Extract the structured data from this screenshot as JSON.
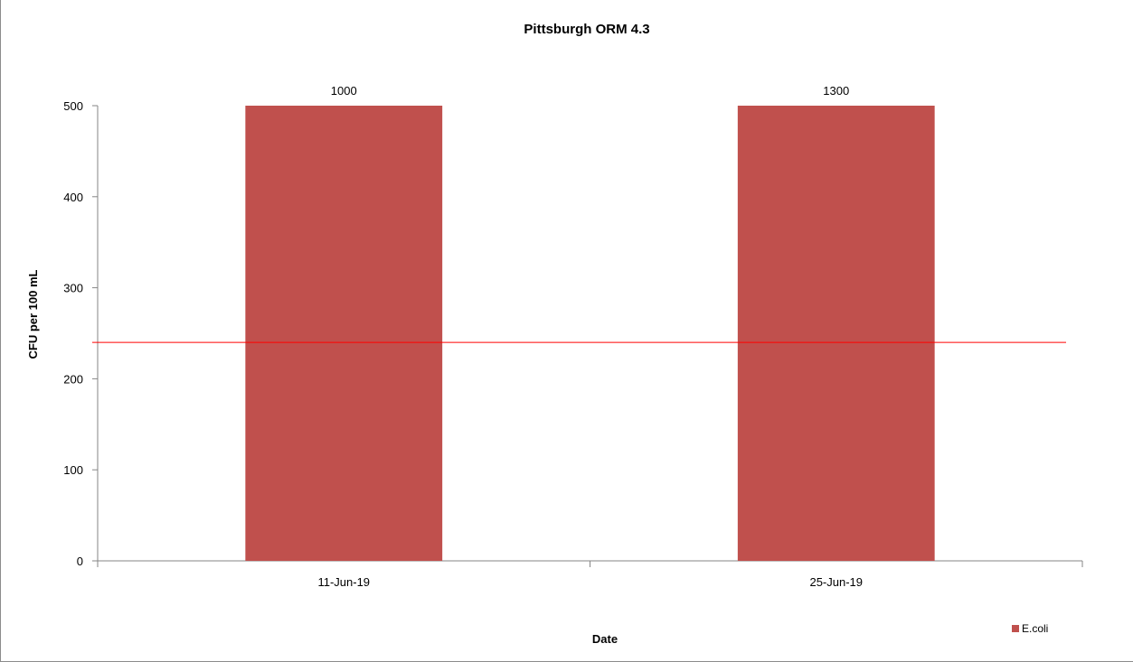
{
  "chart_data": {
    "type": "bar",
    "title": "Pittsburgh ORM 4.3",
    "xlabel": "Date",
    "ylabel": "CFU per 100 mL",
    "categories": [
      "11-Jun-19",
      "25-Jun-19"
    ],
    "series": [
      {
        "name": "E.coli",
        "values": [
          500,
          500
        ],
        "data_labels": [
          "1000",
          "1300"
        ],
        "color": "#C0504D"
      }
    ],
    "ylim": [
      0,
      500
    ],
    "yticks": [
      0,
      100,
      200,
      300,
      400,
      500
    ],
    "ytick_labels": [
      "0",
      "100",
      "200",
      "300",
      "400",
      "500"
    ],
    "reference_line": {
      "value": 240,
      "color": "#FF0000"
    },
    "grid": false,
    "legend_position": "bottom-right"
  }
}
